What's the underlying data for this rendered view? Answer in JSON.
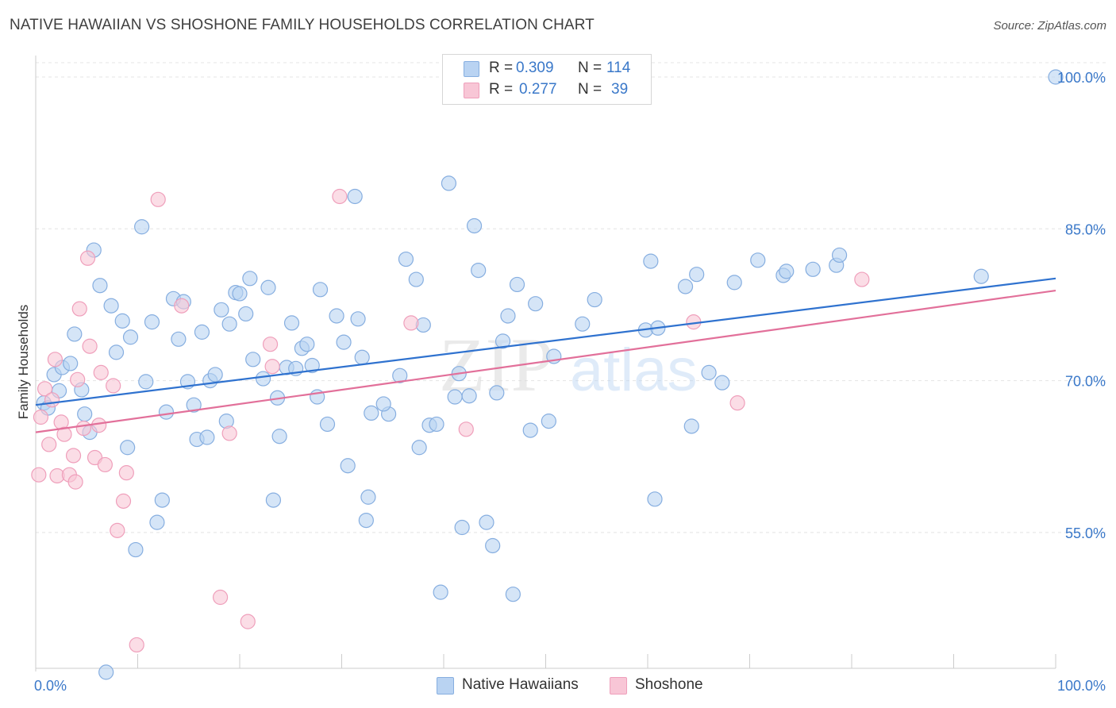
{
  "title": "NATIVE HAWAIIAN VS SHOSHONE FAMILY HOUSEHOLDS CORRELATION CHART",
  "source": "Source: ZipAtlas.com",
  "watermark": {
    "zip": "ZIP",
    "atlas": "atlas"
  },
  "legend": {
    "rows": [
      {
        "r_label": "R =",
        "r_value": "0.309",
        "n_label": "N =",
        "n_value": "114"
      },
      {
        "r_label": "R =",
        "r_value": "0.277",
        "n_label": "N =",
        "n_value": "39"
      }
    ]
  },
  "bottom_legend": [
    "Native Hawaiians",
    "Shoshone"
  ],
  "colors": {
    "blue_fill": "#b9d3f2",
    "blue_stroke": "#86aee0",
    "blue_line": "#2f72cf",
    "pink_fill": "#f8c6d6",
    "pink_stroke": "#ef9fbb",
    "pink_line": "#e2709a",
    "tick_label": "#3a78c9",
    "grid": "#e4e4e4",
    "axis": "#cccccc"
  },
  "chart_data": {
    "type": "scatter",
    "title": "NATIVE HAWAIIAN VS SHOSHONE FAMILY HOUSEHOLDS CORRELATION CHART",
    "xlabel": "",
    "ylabel": "Family Households",
    "xlim": [
      0,
      100
    ],
    "ylim": [
      40,
      102
    ],
    "x_tick_labels": [
      "0.0%",
      "100.0%"
    ],
    "y_ticks": [
      55,
      70,
      85,
      100
    ],
    "y_tick_labels": [
      "55.0%",
      "70.0%",
      "85.0%",
      "100.0%"
    ],
    "grid": true,
    "legend_position": "top-center",
    "series": [
      {
        "name": "Native Hawaiians",
        "r": 0.309,
        "n": 114,
        "trend": {
          "x": [
            0,
            100
          ],
          "y": [
            67.6,
            80.1
          ]
        },
        "points": [
          [
            0.8,
            67.8
          ],
          [
            1.2,
            67.3
          ],
          [
            1.8,
            70.6
          ],
          [
            2.3,
            69.0
          ],
          [
            2.6,
            71.3
          ],
          [
            3.4,
            71.7
          ],
          [
            3.8,
            74.6
          ],
          [
            4.5,
            69.1
          ],
          [
            4.8,
            66.7
          ],
          [
            5.3,
            64.9
          ],
          [
            5.7,
            82.9
          ],
          [
            6.3,
            79.4
          ],
          [
            7.4,
            77.4
          ],
          [
            7.9,
            72.8
          ],
          [
            8.5,
            75.9
          ],
          [
            9.0,
            63.4
          ],
          [
            9.3,
            74.3
          ],
          [
            9.8,
            53.3
          ],
          [
            10.4,
            85.2
          ],
          [
            10.8,
            69.9
          ],
          [
            11.4,
            75.8
          ],
          [
            11.9,
            56.0
          ],
          [
            12.4,
            58.2
          ],
          [
            12.8,
            66.9
          ],
          [
            13.5,
            78.1
          ],
          [
            14.0,
            74.1
          ],
          [
            14.5,
            77.8
          ],
          [
            14.9,
            69.9
          ],
          [
            15.5,
            67.6
          ],
          [
            15.8,
            64.2
          ],
          [
            16.3,
            74.8
          ],
          [
            16.8,
            64.4
          ],
          [
            17.1,
            70.0
          ],
          [
            17.6,
            70.6
          ],
          [
            18.2,
            77.0
          ],
          [
            18.7,
            66.0
          ],
          [
            19.0,
            75.6
          ],
          [
            19.6,
            78.7
          ],
          [
            20.0,
            78.6
          ],
          [
            20.6,
            76.6
          ],
          [
            21.0,
            80.1
          ],
          [
            21.3,
            72.1
          ],
          [
            22.3,
            70.2
          ],
          [
            22.8,
            79.2
          ],
          [
            23.3,
            58.2
          ],
          [
            23.7,
            68.3
          ],
          [
            23.9,
            64.5
          ],
          [
            24.6,
            71.3
          ],
          [
            25.1,
            75.7
          ],
          [
            25.5,
            71.2
          ],
          [
            26.1,
            73.2
          ],
          [
            26.6,
            73.6
          ],
          [
            27.1,
            71.5
          ],
          [
            27.6,
            68.4
          ],
          [
            27.9,
            79.0
          ],
          [
            28.6,
            65.7
          ],
          [
            29.5,
            76.4
          ],
          [
            30.2,
            73.8
          ],
          [
            30.6,
            61.6
          ],
          [
            31.3,
            88.2
          ],
          [
            31.6,
            76.1
          ],
          [
            32.0,
            72.3
          ],
          [
            32.4,
            56.2
          ],
          [
            32.6,
            58.5
          ],
          [
            32.9,
            66.8
          ],
          [
            34.6,
            66.7
          ],
          [
            34.1,
            67.7
          ],
          [
            35.7,
            70.5
          ],
          [
            36.3,
            82.0
          ],
          [
            37.3,
            80.0
          ],
          [
            37.6,
            63.4
          ],
          [
            38.0,
            75.5
          ],
          [
            38.6,
            65.6
          ],
          [
            39.3,
            65.7
          ],
          [
            39.7,
            49.1
          ],
          [
            40.5,
            89.5
          ],
          [
            41.5,
            70.7
          ],
          [
            41.8,
            55.5
          ],
          [
            41.1,
            68.4
          ],
          [
            42.5,
            68.5
          ],
          [
            43.0,
            85.3
          ],
          [
            43.4,
            80.9
          ],
          [
            44.2,
            56.0
          ],
          [
            44.8,
            53.7
          ],
          [
            45.2,
            68.8
          ],
          [
            45.8,
            73.9
          ],
          [
            46.3,
            76.4
          ],
          [
            47.2,
            79.5
          ],
          [
            49.0,
            77.6
          ],
          [
            50.8,
            72.4
          ],
          [
            50.3,
            66.0
          ],
          [
            53.6,
            75.6
          ],
          [
            54.8,
            78.0
          ],
          [
            59.8,
            75.0
          ],
          [
            60.3,
            81.8
          ],
          [
            60.7,
            58.3
          ],
          [
            61.0,
            75.2
          ],
          [
            63.7,
            79.3
          ],
          [
            64.3,
            65.5
          ],
          [
            64.8,
            80.5
          ],
          [
            66.0,
            70.8
          ],
          [
            67.3,
            69.8
          ],
          [
            68.5,
            79.7
          ],
          [
            70.8,
            81.9
          ],
          [
            73.3,
            80.4
          ],
          [
            73.6,
            80.8
          ],
          [
            76.2,
            81.0
          ],
          [
            78.5,
            81.4
          ],
          [
            78.8,
            82.4
          ],
          [
            92.7,
            80.3
          ],
          [
            100.0,
            100.0
          ],
          [
            6.9,
            41.2
          ],
          [
            46.8,
            48.9
          ],
          [
            48.5,
            65.1
          ]
        ]
      },
      {
        "name": "Shoshone",
        "r": 0.277,
        "n": 39,
        "trend": {
          "x": [
            0,
            100
          ],
          "y": [
            64.9,
            78.9
          ]
        },
        "points": [
          [
            0.3,
            60.7
          ],
          [
            0.5,
            66.4
          ],
          [
            0.9,
            69.2
          ],
          [
            1.3,
            63.7
          ],
          [
            1.6,
            68.1
          ],
          [
            1.9,
            72.1
          ],
          [
            2.1,
            60.6
          ],
          [
            2.5,
            65.9
          ],
          [
            2.8,
            64.7
          ],
          [
            3.3,
            60.7
          ],
          [
            3.7,
            62.6
          ],
          [
            3.9,
            60.0
          ],
          [
            4.1,
            70.1
          ],
          [
            4.3,
            77.1
          ],
          [
            4.7,
            65.3
          ],
          [
            5.1,
            82.1
          ],
          [
            5.3,
            73.4
          ],
          [
            5.8,
            62.4
          ],
          [
            6.2,
            65.6
          ],
          [
            6.4,
            70.8
          ],
          [
            6.8,
            61.7
          ],
          [
            7.6,
            69.5
          ],
          [
            8.0,
            55.2
          ],
          [
            8.6,
            58.1
          ],
          [
            8.9,
            60.9
          ],
          [
            9.9,
            43.9
          ],
          [
            12.0,
            87.9
          ],
          [
            14.3,
            77.4
          ],
          [
            18.1,
            48.6
          ],
          [
            19.0,
            64.8
          ],
          [
            20.8,
            46.2
          ],
          [
            23.2,
            71.4
          ],
          [
            23.0,
            73.6
          ],
          [
            29.8,
            88.2
          ],
          [
            36.8,
            75.7
          ],
          [
            42.2,
            65.2
          ],
          [
            64.5,
            75.8
          ],
          [
            68.8,
            67.8
          ],
          [
            81.0,
            80.0
          ]
        ]
      }
    ]
  }
}
